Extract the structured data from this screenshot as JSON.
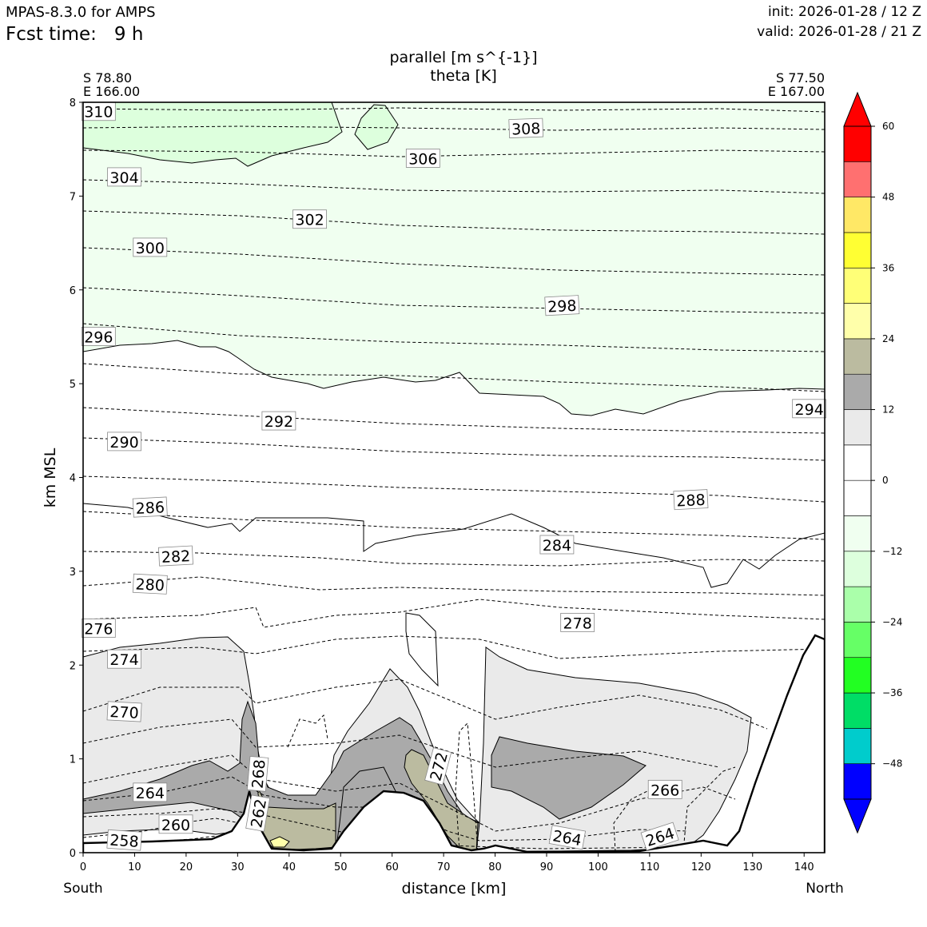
{
  "header": {
    "model": "MPAS-8.3.0 for AMPS",
    "fcst_label": "Fcst time:",
    "fcst_value": "9 h",
    "init": "init: 2026-01-28 / 12 Z",
    "valid": "valid: 2026-01-28 / 21 Z"
  },
  "chart_data": {
    "type": "contour",
    "title": "parallel [m s^{-1}]",
    "subtitle": "theta [K]",
    "xlabel": "distance [km]",
    "ylabel": "km MSL",
    "xlim": [
      0,
      144
    ],
    "ylim": [
      0,
      8
    ],
    "x_ticks": [
      "0",
      "10",
      "20",
      "30",
      "40",
      "50",
      "60",
      "70",
      "80",
      "90",
      "100",
      "110",
      "120",
      "130",
      "140"
    ],
    "y_ticks": [
      "0",
      "1",
      "2",
      "3",
      "4",
      "5",
      "6",
      "7",
      "8"
    ],
    "left_end": {
      "lat": "S 78.80",
      "lon": "E 166.00",
      "dir": "South"
    },
    "right_end": {
      "lat": "S 77.50",
      "lon": "E 167.00",
      "dir": "North"
    },
    "colorbar": {
      "ticks": [
        "60",
        "48",
        "36",
        "24",
        "12",
        "0",
        "−12",
        "−24",
        "−36",
        "−48"
      ],
      "levels": [
        -54,
        -48,
        -42,
        -36,
        -30,
        -24,
        -18,
        -12,
        -6,
        0,
        6,
        12,
        18,
        24,
        30,
        36,
        42,
        48,
        54,
        60
      ],
      "colors": [
        "#0000ff",
        "#00cccc",
        "#00dd66",
        "#22ff22",
        "#66ff66",
        "#aaffaa",
        "#ddffdd",
        "#f0fff0",
        "#ffffff",
        "#ffffff",
        "#eaeaea",
        "#aaaaaa",
        "#bbbba0",
        "#ffffaa",
        "#ffff77",
        "#ffff33",
        "#ffe866",
        "#ff7070",
        "#ff0000"
      ],
      "under_color": "#0000ff",
      "over_color": "#ff0000"
    },
    "theta_labels": [
      {
        "text": "310",
        "x": 3,
        "y": 7.9,
        "rot": 0
      },
      {
        "text": "308",
        "x": 86,
        "y": 7.72,
        "rot": 2
      },
      {
        "text": "306",
        "x": 66,
        "y": 7.4,
        "rot": 0
      },
      {
        "text": "304",
        "x": 8,
        "y": 7.2,
        "rot": 0
      },
      {
        "text": "302",
        "x": 44,
        "y": 6.75,
        "rot": 0
      },
      {
        "text": "300",
        "x": 13,
        "y": 6.45,
        "rot": 0
      },
      {
        "text": "298",
        "x": 93,
        "y": 5.83,
        "rot": 3
      },
      {
        "text": "296",
        "x": 3,
        "y": 5.5,
        "rot": 0
      },
      {
        "text": "294",
        "x": 141,
        "y": 4.73,
        "rot": 0
      },
      {
        "text": "292",
        "x": 38,
        "y": 4.6,
        "rot": 0
      },
      {
        "text": "290",
        "x": 8,
        "y": 4.38,
        "rot": 0
      },
      {
        "text": "288",
        "x": 118,
        "y": 3.76,
        "rot": 3
      },
      {
        "text": "286",
        "x": 13,
        "y": 3.68,
        "rot": 3
      },
      {
        "text": "284",
        "x": 92,
        "y": 3.28,
        "rot": 0
      },
      {
        "text": "282",
        "x": 18,
        "y": 3.16,
        "rot": 3
      },
      {
        "text": "280",
        "x": 13,
        "y": 2.86,
        "rot": -3
      },
      {
        "text": "278",
        "x": 96,
        "y": 2.45,
        "rot": 0
      },
      {
        "text": "276",
        "x": 3,
        "y": 2.39,
        "rot": 0
      },
      {
        "text": "274",
        "x": 8,
        "y": 2.06,
        "rot": 0
      },
      {
        "text": "272",
        "x": 69,
        "y": 0.92,
        "rot": 75
      },
      {
        "text": "270",
        "x": 8,
        "y": 1.5,
        "rot": -3
      },
      {
        "text": "268",
        "x": 34,
        "y": 0.84,
        "rot": 85
      },
      {
        "text": "266",
        "x": 113,
        "y": 0.67,
        "rot": 0
      },
      {
        "text": "264",
        "x": 13,
        "y": 0.64,
        "rot": 0
      },
      {
        "text": "264",
        "x": 94,
        "y": 0.16,
        "rot": -10
      },
      {
        "text": "264",
        "x": 112,
        "y": 0.17,
        "rot": 18
      },
      {
        "text": "262",
        "x": 34,
        "y": 0.42,
        "rot": 80
      },
      {
        "text": "260",
        "x": 18,
        "y": 0.3,
        "rot": 0
      },
      {
        "text": "258",
        "x": 8,
        "y": 0.13,
        "rot": -4
      }
    ]
  }
}
